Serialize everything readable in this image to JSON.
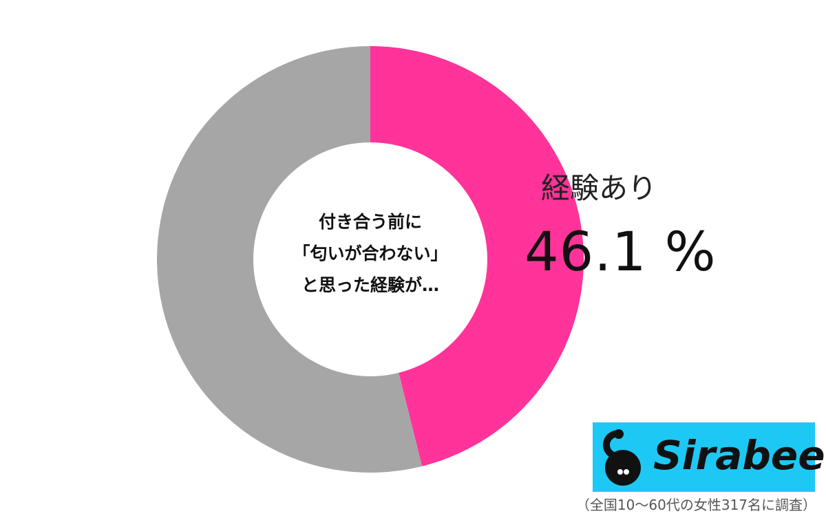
{
  "chart_data": {
    "type": "pie",
    "donut": true,
    "center_text": [
      "付き合う前に",
      "「匂いが合わない」",
      "と思った経験が…"
    ],
    "slices": [
      {
        "name": "経験あり",
        "value": 46.1,
        "color": "#ff3399",
        "label": "経験あり",
        "value_label": "46.1 %"
      },
      {
        "name": "",
        "value": 53.9,
        "color": "#a6a6a6"
      }
    ],
    "start": "top",
    "direction": "clockwise"
  },
  "logo": {
    "text": "Sirabee",
    "color": "#1ec8f5",
    "icon": "sirabee-mascot-icon"
  },
  "footnote": "（全国10～60代の女性317名に調査）"
}
